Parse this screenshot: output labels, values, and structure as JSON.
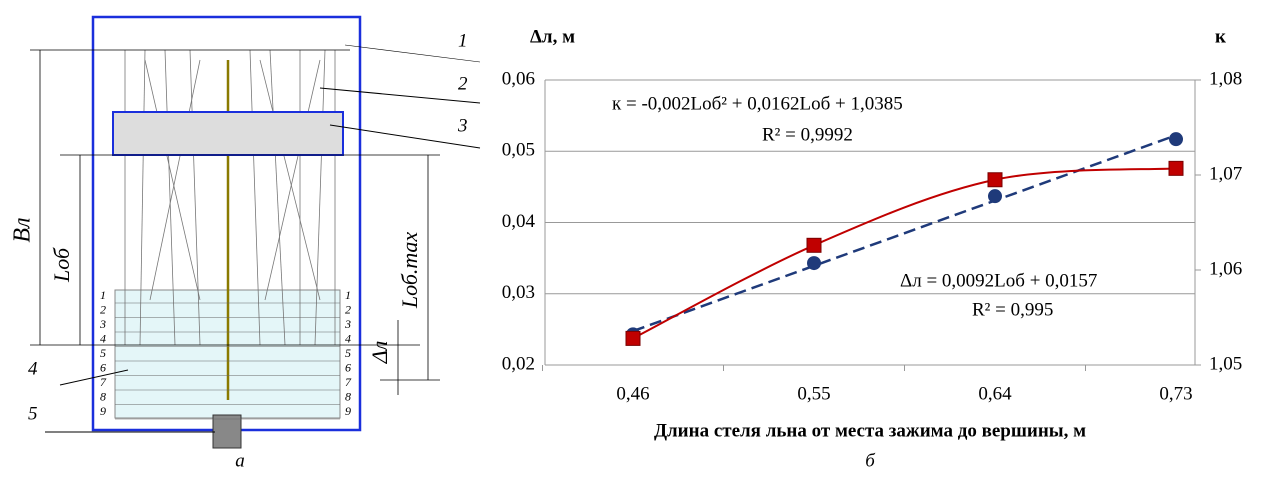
{
  "diagram": {
    "callouts": [
      "1",
      "2",
      "3",
      "4",
      "5"
    ],
    "dimensions": [
      "Bл",
      "Lоб",
      "Lоб.max",
      "Δл"
    ],
    "rows": [
      "1",
      "2",
      "3",
      "4",
      "5",
      "6",
      "7",
      "8",
      "9"
    ],
    "caption": "а"
  },
  "chart_data": {
    "type": "line",
    "caption": "б",
    "y_title": "Δл, м",
    "y2_title": "к",
    "x_title": "Длина стеля льна от места зажима до вершины, м",
    "categories": [
      "0,46",
      "0,55",
      "0,64",
      "0,73"
    ],
    "ylim": [
      0.02,
      0.06
    ],
    "yticks": [
      {
        "value": 0.02,
        "label": "0,02"
      },
      {
        "value": 0.03,
        "label": "0,03"
      },
      {
        "value": 0.04,
        "label": "0,04"
      },
      {
        "value": 0.05,
        "label": "0,05"
      },
      {
        "value": 0.06,
        "label": "0,06"
      }
    ],
    "y2lim": [
      1.05,
      1.08
    ],
    "y2ticks": [
      {
        "value": 1.05,
        "label": "1,05"
      },
      {
        "value": 1.06,
        "label": "1,06"
      },
      {
        "value": 1.07,
        "label": "1,07"
      },
      {
        "value": 1.08,
        "label": "1,08"
      }
    ],
    "grid": true,
    "series": [
      {
        "name": "Δл",
        "color": "#1f3a7a",
        "marker": "circle",
        "trend": "linear",
        "values": [
          0.0243,
          0.0343,
          0.0437,
          0.0517
        ]
      },
      {
        "name": "к",
        "color": "#c00000",
        "marker": "square",
        "trend": "smooth",
        "axis": "y2",
        "values": [
          1.0528,
          1.0626,
          1.0695,
          1.0707
        ]
      }
    ],
    "annotations": [
      "к = -0,002Lоб² + 0,0162Lоб + 1,0385",
      "R² = 0,9992",
      "Δл = 0,0092Lоб + 0,0157",
      "R² = 0,995"
    ]
  }
}
